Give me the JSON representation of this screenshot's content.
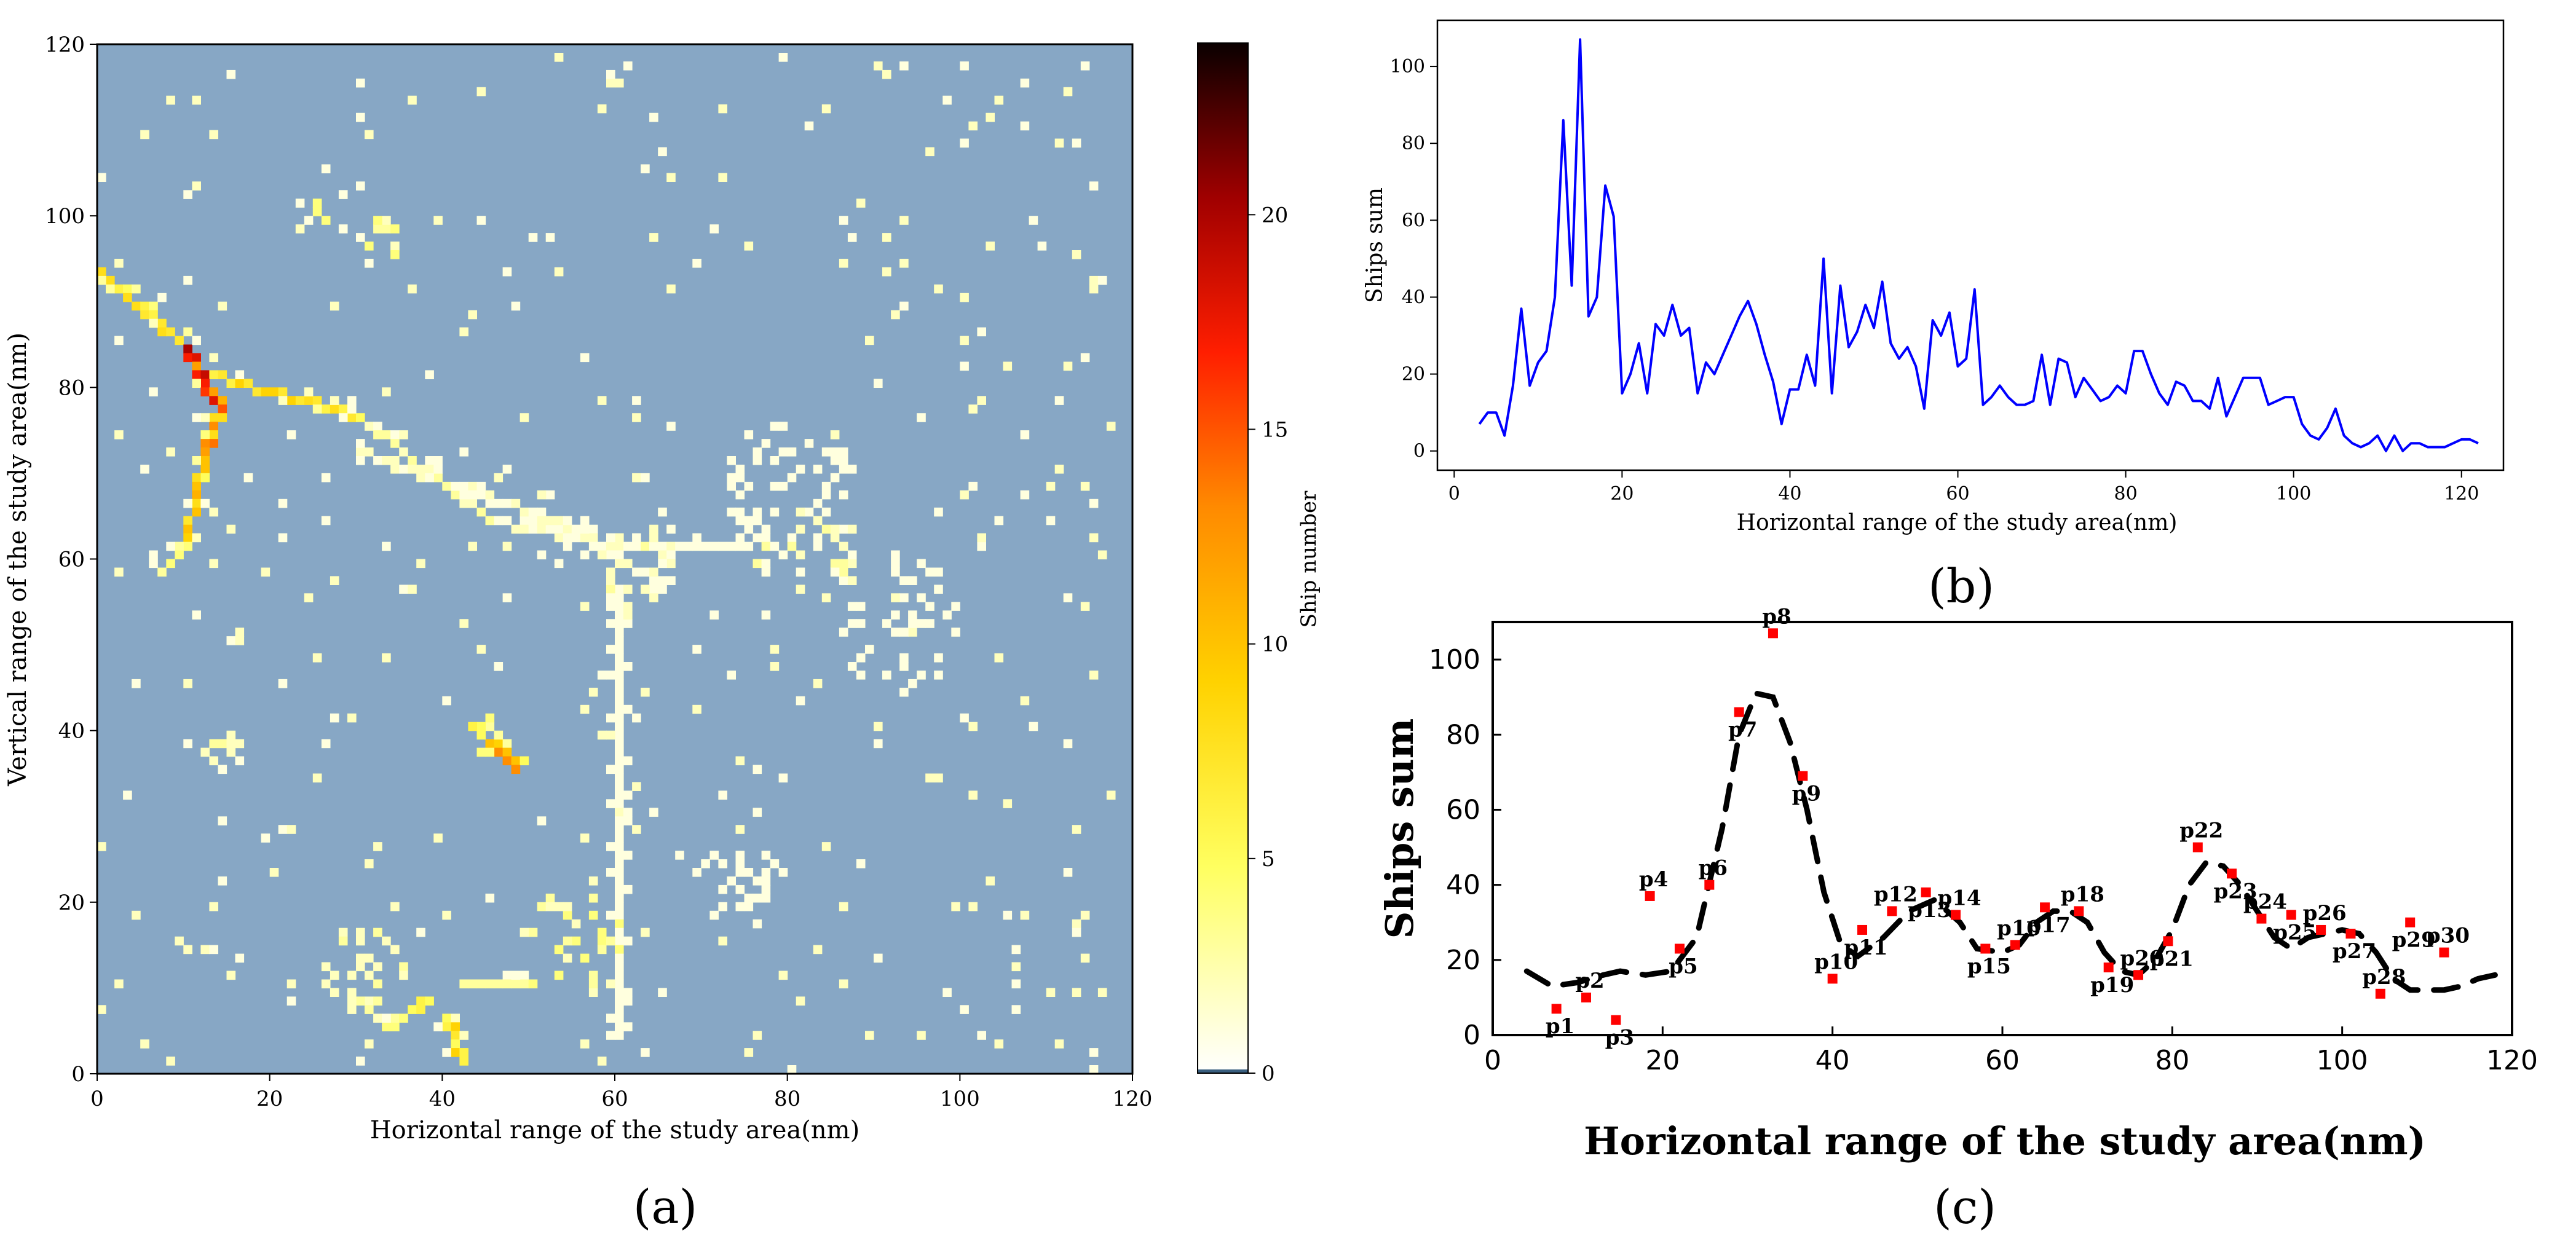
{
  "chart_data": [
    {
      "id": "a",
      "type": "heatmap",
      "panel_label": "(a)",
      "xlabel": "Horizontal range of the study area(nm)",
      "ylabel": "Vertical range of the study area(nm)",
      "xlim": [
        0,
        120
      ],
      "ylim": [
        0,
        120
      ],
      "x_ticks": [
        0,
        20,
        40,
        60,
        80,
        100,
        120
      ],
      "y_ticks": [
        0,
        20,
        40,
        60,
        80,
        100,
        120
      ],
      "grid_resolution_nm": 1,
      "background_color": "#87A7C5",
      "colorbar": {
        "label": "Ship number",
        "range": [
          0,
          24
        ],
        "ticks": [
          0,
          5,
          10,
          15,
          20
        ],
        "colormap": "hot_r"
      },
      "route_segments": [
        {
          "from": [
            0,
            93
          ],
          "to": [
            10,
            84
          ],
          "value": 9
        },
        {
          "from": [
            10,
            84
          ],
          "to": [
            12,
            80
          ],
          "value": 22
        },
        {
          "from": [
            12,
            80
          ],
          "to": [
            14,
            77
          ],
          "value": 18
        },
        {
          "from": [
            14,
            77
          ],
          "to": [
            12,
            72
          ],
          "value": 14
        },
        {
          "from": [
            12,
            72
          ],
          "to": [
            10,
            62
          ],
          "value": 12
        },
        {
          "from": [
            10,
            62
          ],
          "to": [
            7,
            58
          ],
          "value": 5
        },
        {
          "from": [
            12,
            81
          ],
          "to": [
            30,
            76
          ],
          "value": 9
        },
        {
          "from": [
            30,
            76
          ],
          "to": [
            45,
            64
          ],
          "value": 3
        },
        {
          "from": [
            45,
            64
          ],
          "to": [
            60,
            61
          ],
          "value": 2
        },
        {
          "from": [
            60,
            61
          ],
          "to": [
            75,
            61
          ],
          "value": 1
        },
        {
          "from": [
            30,
            72
          ],
          "to": [
            55,
            63
          ],
          "value": 2
        },
        {
          "from": [
            55,
            63
          ],
          "to": [
            65,
            56
          ],
          "value": 1
        },
        {
          "from": [
            60,
            56
          ],
          "to": [
            60,
            4
          ],
          "value": 1
        },
        {
          "from": [
            40,
            6
          ],
          "to": [
            42,
            1
          ],
          "value": 9
        },
        {
          "from": [
            45,
            38
          ],
          "to": [
            48,
            35
          ],
          "value": 14
        },
        {
          "from": [
            42,
            10
          ],
          "to": [
            50,
            10
          ],
          "value": 4
        },
        {
          "from": [
            33,
            5
          ],
          "to": [
            38,
            8
          ],
          "value": 6
        }
      ],
      "clusters": [
        {
          "center": [
            80,
            68
          ],
          "radius": 8,
          "count": 60,
          "value": 1
        },
        {
          "center": [
            82,
            60
          ],
          "radius": 6,
          "count": 30,
          "value": 2
        },
        {
          "center": [
            92,
            52
          ],
          "radius": 8,
          "count": 45,
          "value": 1
        },
        {
          "center": [
            62,
            58
          ],
          "radius": 5,
          "count": 25,
          "value": 2
        },
        {
          "center": [
            30,
            12
          ],
          "radius": 5,
          "count": 30,
          "value": 2
        },
        {
          "center": [
            45,
            38
          ],
          "radius": 3,
          "count": 14,
          "value": 4
        },
        {
          "center": [
            74,
            22
          ],
          "radius": 5,
          "count": 25,
          "value": 1
        },
        {
          "center": [
            55,
            15
          ],
          "radius": 6,
          "count": 30,
          "value": 3
        },
        {
          "center": [
            33,
            97
          ],
          "radius": 2,
          "count": 8,
          "value": 3
        },
        {
          "center": [
            25,
            99
          ],
          "radius": 2,
          "count": 5,
          "value": 3
        },
        {
          "center": [
            14,
            38
          ],
          "radius": 3,
          "count": 10,
          "value": 2
        }
      ],
      "random_cells": {
        "count": 340,
        "value_range": [
          1,
          2
        ]
      }
    },
    {
      "id": "b",
      "type": "line",
      "panel_label": "(b)",
      "xlabel": "Horizontal range of the study area(nm)",
      "ylabel": "Ships sum",
      "xlim": [
        -2,
        125
      ],
      "ylim": [
        -5,
        112
      ],
      "x_ticks": [
        0,
        20,
        40,
        60,
        80,
        100,
        120
      ],
      "y_ticks": [
        0,
        20,
        40,
        60,
        80,
        100
      ],
      "color": "#0000FF",
      "x": [
        3,
        4,
        5,
        6,
        7,
        8,
        9,
        10,
        11,
        12,
        13,
        14,
        15,
        16,
        17,
        18,
        19,
        20,
        21,
        22,
        23,
        24,
        25,
        26,
        27,
        28,
        29,
        30,
        31,
        32,
        33,
        34,
        35,
        36,
        37,
        38,
        39,
        40,
        41,
        42,
        43,
        44,
        45,
        46,
        47,
        48,
        49,
        50,
        51,
        52,
        53,
        54,
        55,
        56,
        57,
        58,
        59,
        60,
        61,
        62,
        63,
        64,
        65,
        66,
        67,
        68,
        69,
        70,
        71,
        72,
        73,
        74,
        75,
        76,
        77,
        78,
        79,
        80,
        81,
        82,
        83,
        84,
        85,
        86,
        87,
        88,
        89,
        90,
        91,
        92,
        93,
        94,
        95,
        96,
        97,
        98,
        99,
        100,
        101,
        102,
        103,
        104,
        105,
        106,
        107,
        108,
        109,
        110,
        111,
        112,
        113,
        114,
        115,
        116,
        117,
        118,
        119,
        120,
        121,
        122
      ],
      "y": [
        7,
        10,
        10,
        4,
        17,
        37,
        17,
        23,
        26,
        40,
        86,
        43,
        107,
        35,
        40,
        69,
        61,
        15,
        20,
        28,
        15,
        33,
        30,
        38,
        30,
        32,
        15,
        23,
        20,
        25,
        30,
        35,
        39,
        33,
        25,
        18,
        7,
        16,
        16,
        25,
        17,
        50,
        15,
        43,
        27,
        31,
        38,
        32,
        44,
        28,
        24,
        27,
        22,
        11,
        34,
        30,
        36,
        22,
        24,
        42,
        12,
        14,
        17,
        14,
        12,
        12,
        13,
        25,
        12,
        24,
        23,
        14,
        19,
        16,
        13,
        14,
        17,
        15,
        26,
        26,
        20,
        15,
        12,
        18,
        17,
        13,
        13,
        11,
        19,
        9,
        14,
        19,
        19,
        19,
        12,
        13,
        14,
        14,
        7,
        4,
        3,
        6,
        11,
        4,
        2,
        1,
        2,
        4,
        0,
        4,
        0,
        2,
        2,
        1,
        1,
        1,
        2,
        3,
        3,
        2
      ]
    },
    {
      "id": "c",
      "type": "scatter",
      "panel_label": "(c)",
      "xlabel": "Horizontal range of the study area(nm)",
      "ylabel": "Ships sum",
      "xlim": [
        0,
        120
      ],
      "ylim": [
        0,
        110
      ],
      "x_ticks": [
        0,
        20,
        40,
        60,
        80,
        100,
        120
      ],
      "y_ticks": [
        0,
        20,
        40,
        60,
        80,
        100
      ],
      "point_color": "#FF0000",
      "curve_color": "#000000",
      "points": [
        {
          "label": "p1",
          "x": 7.5,
          "y": 7
        },
        {
          "label": "p2",
          "x": 11,
          "y": 10
        },
        {
          "label": "p3",
          "x": 14.5,
          "y": 4
        },
        {
          "label": "p4",
          "x": 18.5,
          "y": 37
        },
        {
          "label": "p5",
          "x": 22,
          "y": 23
        },
        {
          "label": "p6",
          "x": 25.5,
          "y": 40
        },
        {
          "label": "p7",
          "x": 29,
          "y": 86
        },
        {
          "label": "p8",
          "x": 33,
          "y": 107
        },
        {
          "label": "p9",
          "x": 36.5,
          "y": 69
        },
        {
          "label": "p10",
          "x": 40,
          "y": 15
        },
        {
          "label": "p11",
          "x": 43.5,
          "y": 28
        },
        {
          "label": "p12",
          "x": 47,
          "y": 33
        },
        {
          "label": "p13",
          "x": 51,
          "y": 38
        },
        {
          "label": "p14",
          "x": 54.5,
          "y": 32
        },
        {
          "label": "p15",
          "x": 58,
          "y": 23
        },
        {
          "label": "p16",
          "x": 61.5,
          "y": 24
        },
        {
          "label": "p17",
          "x": 65,
          "y": 34
        },
        {
          "label": "p18",
          "x": 69,
          "y": 33
        },
        {
          "label": "p19",
          "x": 72.5,
          "y": 18
        },
        {
          "label": "p20",
          "x": 76,
          "y": 16
        },
        {
          "label": "p21",
          "x": 79.5,
          "y": 25
        },
        {
          "label": "p22",
          "x": 83,
          "y": 50
        },
        {
          "label": "p23",
          "x": 87,
          "y": 43
        },
        {
          "label": "p24",
          "x": 90.5,
          "y": 31
        },
        {
          "label": "p25",
          "x": 94,
          "y": 32
        },
        {
          "label": "p26",
          "x": 97.5,
          "y": 28
        },
        {
          "label": "p27",
          "x": 101,
          "y": 27
        },
        {
          "label": "p28",
          "x": 104.5,
          "y": 11
        },
        {
          "label": "p29",
          "x": 108,
          "y": 30
        },
        {
          "label": "p30",
          "x": 112,
          "y": 22
        }
      ],
      "curve": [
        [
          4,
          17
        ],
        [
          7,
          13
        ],
        [
          10,
          14
        ],
        [
          13,
          16
        ],
        [
          15,
          17
        ],
        [
          18,
          16
        ],
        [
          21,
          17
        ],
        [
          24,
          26
        ],
        [
          27,
          55
        ],
        [
          29,
          80
        ],
        [
          31,
          91
        ],
        [
          33,
          90
        ],
        [
          35,
          78
        ],
        [
          37,
          60
        ],
        [
          39,
          38
        ],
        [
          41,
          24
        ],
        [
          43,
          21
        ],
        [
          46,
          26
        ],
        [
          49,
          33
        ],
        [
          52,
          36
        ],
        [
          55,
          30
        ],
        [
          57,
          23
        ],
        [
          60,
          22
        ],
        [
          62,
          24
        ],
        [
          64,
          30
        ],
        [
          66,
          33
        ],
        [
          68,
          33
        ],
        [
          70,
          30
        ],
        [
          72,
          22
        ],
        [
          74,
          17
        ],
        [
          76,
          16
        ],
        [
          78,
          20
        ],
        [
          80,
          28
        ],
        [
          82,
          40
        ],
        [
          84,
          46
        ],
        [
          86,
          45
        ],
        [
          88,
          40
        ],
        [
          90,
          33
        ],
        [
          92,
          26
        ],
        [
          94,
          23
        ],
        [
          96,
          26
        ],
        [
          98,
          27
        ],
        [
          100,
          28
        ],
        [
          102,
          27
        ],
        [
          104,
          22
        ],
        [
          106,
          15
        ],
        [
          108,
          12
        ],
        [
          110,
          12
        ],
        [
          112,
          12
        ],
        [
          114,
          13
        ],
        [
          116,
          15
        ],
        [
          118,
          16
        ]
      ]
    }
  ]
}
